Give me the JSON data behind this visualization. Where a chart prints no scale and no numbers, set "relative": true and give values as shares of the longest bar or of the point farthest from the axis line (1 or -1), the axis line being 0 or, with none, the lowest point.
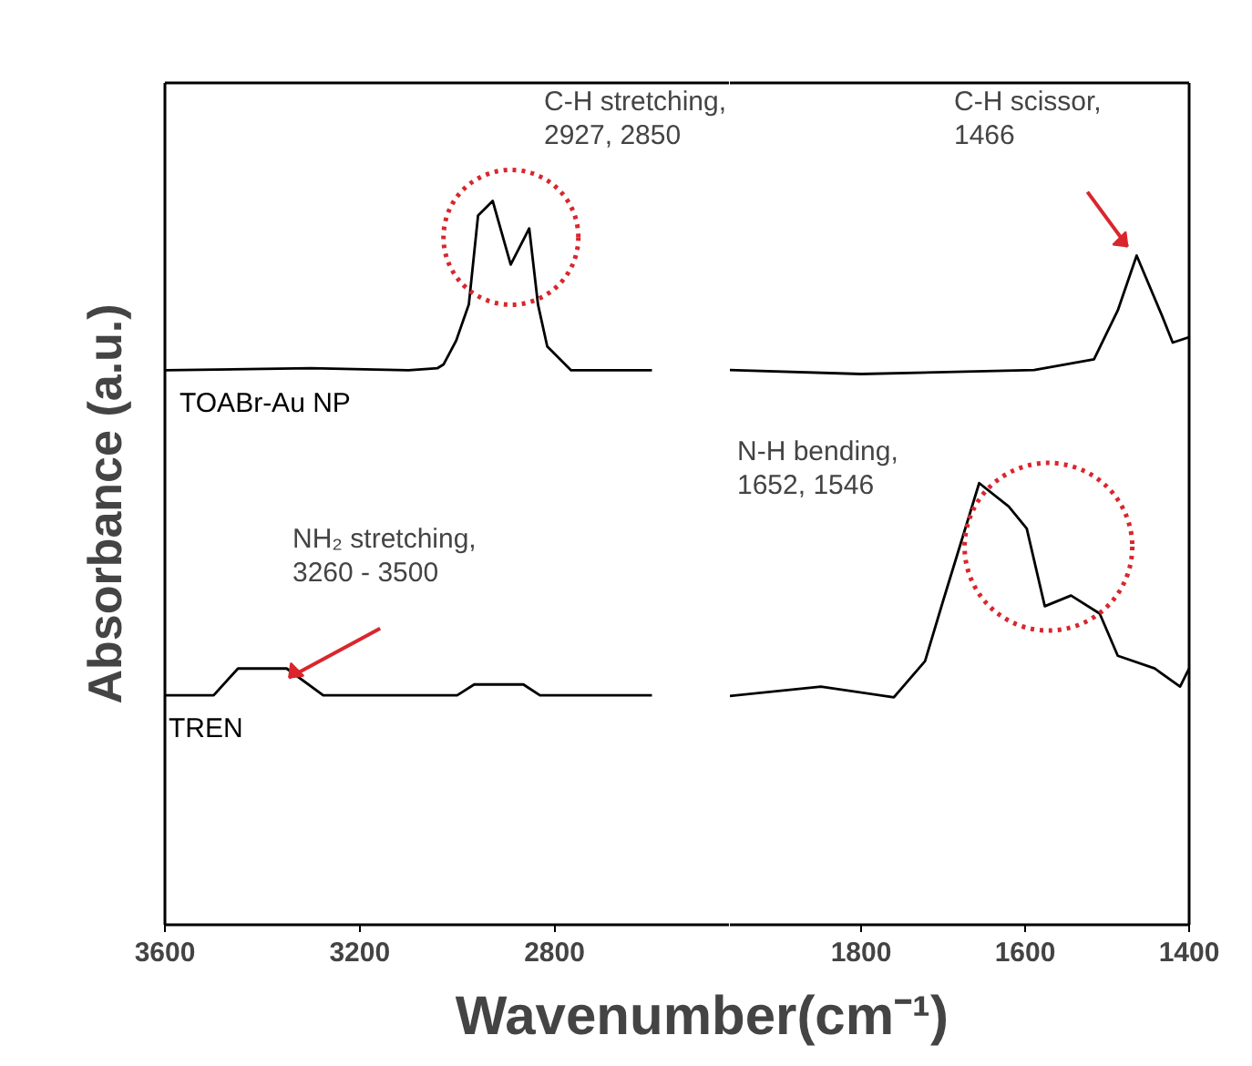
{
  "chart_data": [
    {
      "type": "line",
      "relative": true,
      "ylabel": "Absorbance (a.u.)",
      "xlabel": "Wavenumber(cm⁻¹)",
      "xlim": [
        3600,
        2440
      ],
      "xticks": [
        3600,
        3200,
        2800
      ],
      "tick_labels": "x",
      "grid": false,
      "marker": "none",
      "line_style": "solid",
      "series": [
        {
          "name": "TOABr-Au NP",
          "color": "#000000",
          "x": [
            3600,
            3300,
            3100,
            3040,
            3028,
            3002,
            2976,
            2957,
            2927,
            2890,
            2852,
            2834,
            2815,
            2766,
            2600
          ],
          "values": [
            0.766,
            0.769,
            0.766,
            0.769,
            0.774,
            0.807,
            0.857,
            0.98,
            1.0,
            0.912,
            0.962,
            0.857,
            0.799,
            0.766,
            0.766
          ]
        },
        {
          "name": "TREN",
          "color": "#000000",
          "x": [
            3600,
            3500,
            3450,
            3350,
            3275,
            3000,
            2965,
            2864,
            2830,
            2600
          ],
          "values": [
            0.317,
            0.317,
            0.354,
            0.354,
            0.317,
            0.317,
            0.332,
            0.332,
            0.317,
            0.317
          ]
        }
      ],
      "annotations": [
        "C-H stretching,\n2927, 2850",
        "NH₂ stretching,\n3260 - 3500"
      ]
    },
    {
      "type": "line",
      "relative": true,
      "xlim": [
        1960,
        1400
      ],
      "xticks": [
        1800,
        1600,
        1400
      ],
      "tick_labels": "x",
      "grid": false,
      "marker": "none",
      "line_style": "solid",
      "series": [
        {
          "color": "#000000",
          "x": [
            1960,
            1800,
            1589,
            1516,
            1487,
            1464,
            1433,
            1420,
            1400
          ],
          "values": [
            0.829,
            0.823,
            0.829,
            0.845,
            0.918,
            1.0,
            0.91,
            0.87,
            0.878
          ]
        },
        {
          "color": "#000000",
          "x": [
            1960,
            1849,
            1760,
            1722,
            1700,
            1656,
            1620,
            1598,
            1576,
            1544,
            1509,
            1487,
            1442,
            1411,
            1400
          ],
          "values": [
            0.342,
            0.356,
            0.34,
            0.394,
            0.484,
            0.66,
            0.625,
            0.592,
            0.476,
            0.492,
            0.465,
            0.402,
            0.383,
            0.356,
            0.383
          ]
        }
      ],
      "annotations": [
        "C-H scissor,\n1466",
        "N-H bending,\n1652, 1546"
      ]
    }
  ]
}
